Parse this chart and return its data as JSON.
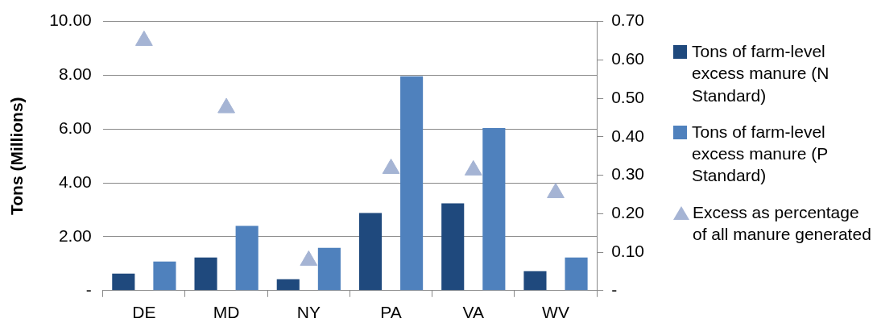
{
  "chart_data": {
    "type": "bar",
    "ylabel": "Tons (Millions)",
    "categories": [
      "DE",
      "MD",
      "NY",
      "PA",
      "VA",
      "WV"
    ],
    "series": [
      {
        "name": "Tons of farm-level excess manure (N Standard)",
        "color": "#1f497d",
        "values": [
          0.63,
          1.23,
          0.42,
          2.88,
          3.24,
          0.72
        ]
      },
      {
        "name": "Tons of farm-level excess manure (P Standard)",
        "color": "#4f81bd",
        "values": [
          1.08,
          2.4,
          1.59,
          7.96,
          6.04,
          1.23
        ]
      },
      {
        "name": "Excess as percentage of all manure generated",
        "type": "scatter",
        "axis": "y2",
        "marker": "triangle",
        "color": "#a5b4d4",
        "values": [
          0.65,
          0.475,
          0.078,
          0.317,
          0.313,
          0.254
        ]
      }
    ],
    "ylim": [
      0,
      10
    ],
    "yticks": [
      {
        "value": 0,
        "label": "-"
      },
      {
        "value": 2,
        "label": "2.00"
      },
      {
        "value": 4,
        "label": "4.00"
      },
      {
        "value": 6,
        "label": "6.00"
      },
      {
        "value": 8,
        "label": "8.00"
      },
      {
        "value": 10,
        "label": "10.00"
      }
    ],
    "y2lim": [
      0,
      0.7
    ],
    "y2ticks": [
      {
        "value": 0,
        "label": "-"
      },
      {
        "value": 0.1,
        "label": "0.10"
      },
      {
        "value": 0.2,
        "label": "0.20"
      },
      {
        "value": 0.3,
        "label": "0.30"
      },
      {
        "value": 0.4,
        "label": "0.40"
      },
      {
        "value": 0.5,
        "label": "0.50"
      },
      {
        "value": 0.6,
        "label": "0.60"
      },
      {
        "value": 0.7,
        "label": "0.70"
      }
    ],
    "grid": "y",
    "legend": "right"
  }
}
